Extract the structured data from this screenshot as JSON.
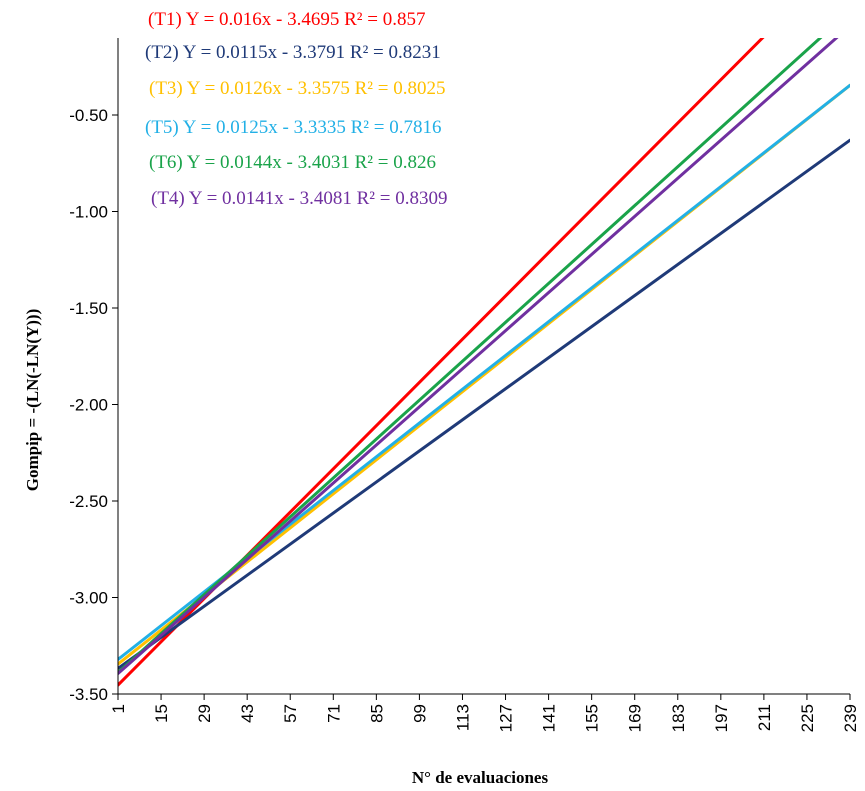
{
  "chart_data": {
    "type": "line",
    "title": "",
    "xlabel": "N° de evaluaciones",
    "ylabel": "Gompip = -(LN(-LN(Y)))",
    "x_ticks": [
      "1",
      "15",
      "29",
      "43",
      "57",
      "71",
      "85",
      "99",
      "113",
      "127",
      "141",
      "155",
      "169",
      "183",
      "197",
      "211",
      "225",
      "239"
    ],
    "x_range": [
      1,
      239
    ],
    "y_ticks": [
      "-0.50",
      "-1.00",
      "-1.50",
      "-2.00",
      "-2.50",
      "-3.00",
      "-3.50"
    ],
    "y_tick_values": [
      -0.5,
      -1.0,
      -1.5,
      -2.0,
      -2.5,
      -3.0,
      -3.5
    ],
    "ylim": [
      -3.5,
      -0.2
    ],
    "grid": false,
    "series": [
      {
        "name": "T1",
        "slope": 0.016,
        "intercept": -3.4695,
        "r2": 0.857,
        "color": "#ff0000"
      },
      {
        "name": "T2",
        "slope": 0.0115,
        "intercept": -3.3791,
        "r2": 0.8231,
        "color": "#1f3a78"
      },
      {
        "name": "T3",
        "slope": 0.0126,
        "intercept": -3.3575,
        "r2": 0.8025,
        "color": "#ffc000"
      },
      {
        "name": "T5",
        "slope": 0.0125,
        "intercept": -3.3335,
        "r2": 0.7816,
        "color": "#22b0e6"
      },
      {
        "name": "T6",
        "slope": 0.0144,
        "intercept": -3.4031,
        "r2": 0.826,
        "color": "#1aa34a"
      },
      {
        "name": "T4",
        "slope": 0.0141,
        "intercept": -3.4081,
        "r2": 0.8309,
        "color": "#7030a0"
      }
    ],
    "annotations": [
      {
        "text": "(T1) Y = 0.016x - 3.4695  R² = 0.857",
        "color": "#ff0000"
      },
      {
        "text": "(T2) Y = 0.0115x - 3.3791  R² = 0.8231",
        "color": "#1f3a78"
      },
      {
        "text": "(T3) Y = 0.0126x - 3.3575  R² = 0.8025",
        "color": "#ffc000"
      },
      {
        "text": "(T5) Y = 0.0125x - 3.3335  R² = 0.7816",
        "color": "#22b0e6"
      },
      {
        "text": "(T6) Y = 0.0144x - 3.4031  R² = 0.826",
        "color": "#1aa34a"
      },
      {
        "text": "(T4) Y = 0.0141x - 3.4081  R² = 0.8309",
        "color": "#7030a0"
      }
    ]
  }
}
